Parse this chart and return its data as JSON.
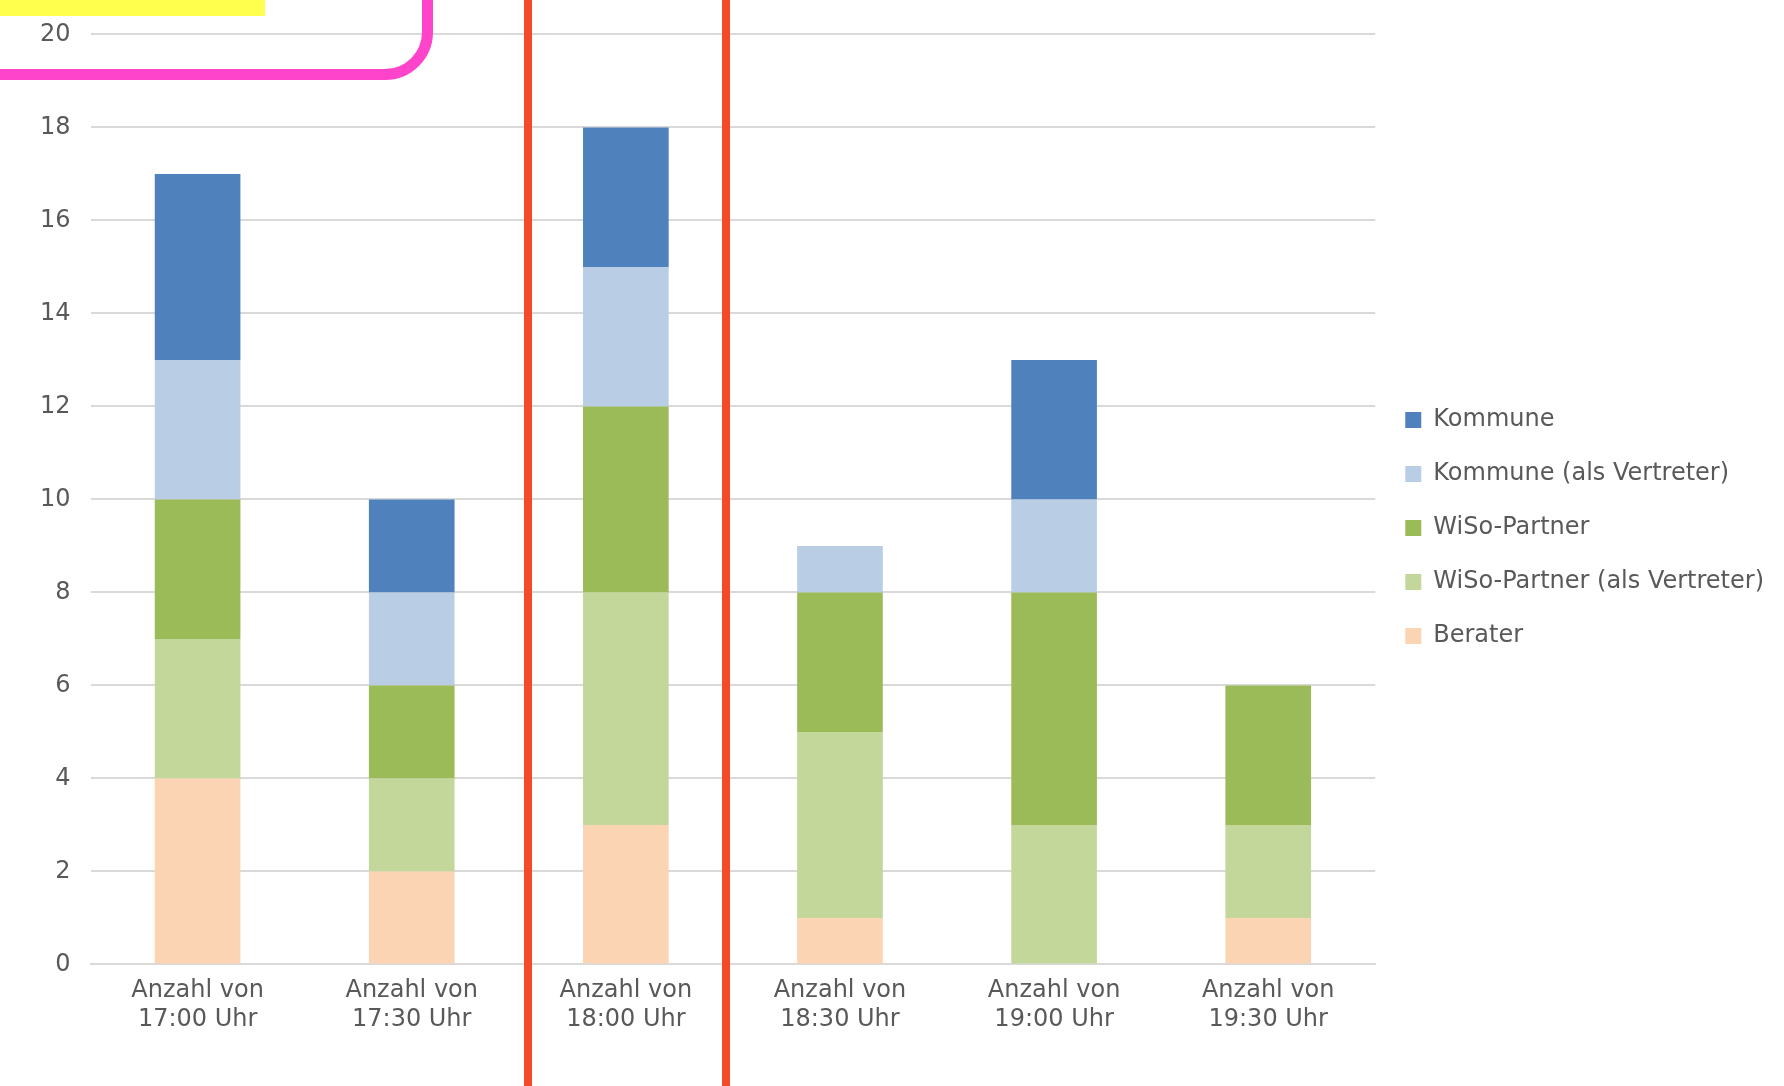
{
  "chart_data": {
    "type": "bar",
    "stacked": true,
    "categories": [
      "Anzahl von 17:00 Uhr",
      "Anzahl von 17:30 Uhr",
      "Anzahl von 18:00 Uhr",
      "Anzahl von 18:30 Uhr",
      "Anzahl von 19:00 Uhr",
      "Anzahl von 19:30 Uhr"
    ],
    "series": [
      {
        "name": "Berater",
        "color": "#fbd4b4",
        "values": [
          4,
          2,
          3,
          1,
          0,
          1
        ]
      },
      {
        "name": "WiSo-Partner (als Vertreter)",
        "color": "#c4d79b",
        "values": [
          3,
          2,
          5,
          4,
          3,
          2
        ]
      },
      {
        "name": "WiSo-Partner",
        "color": "#9bbb59",
        "values": [
          3,
          2,
          4,
          3,
          5,
          3
        ]
      },
      {
        "name": "Kommune (als Vertreter)",
        "color": "#b9cde5",
        "values": [
          3,
          2,
          3,
          1,
          2,
          0
        ]
      },
      {
        "name": "Kommune",
        "color": "#4f81bd",
        "values": [
          4,
          2,
          3,
          0,
          3,
          0
        ]
      }
    ],
    "ylim": [
      0,
      20
    ],
    "yticks": [
      0,
      2,
      4,
      6,
      8,
      10,
      12,
      14,
      16,
      18,
      20
    ],
    "grid": "y",
    "legend": "right"
  }
}
